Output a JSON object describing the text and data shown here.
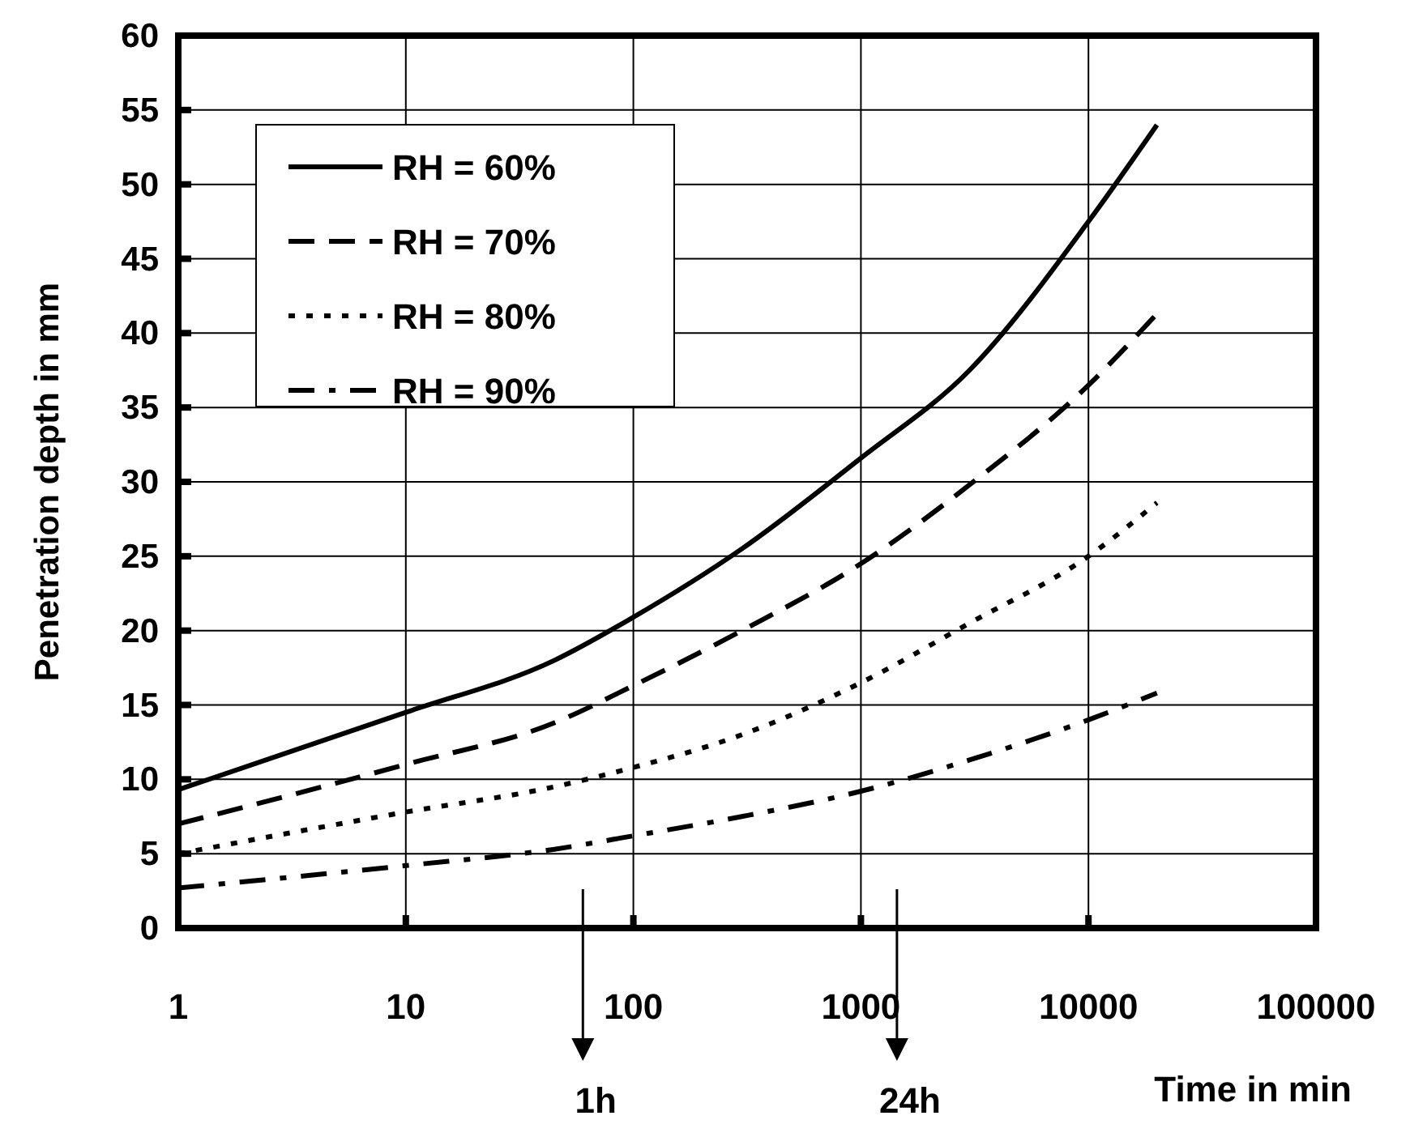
{
  "chart_data": {
    "type": "line",
    "xlabel": "Time in min",
    "ylabel": "Penetration depth in mm",
    "log": "x",
    "grid": true,
    "legend": "top left",
    "marker": "none",
    "xlim": [
      1,
      100000
    ],
    "xticks": [
      1,
      10,
      100,
      1000,
      10000,
      100000
    ],
    "ylim": [
      0,
      60
    ],
    "yticks": [
      0,
      5,
      10,
      15,
      20,
      25,
      30,
      35,
      40,
      45,
      50,
      55,
      60
    ],
    "series": [
      {
        "name": "RH = 60%",
        "color": "#000000",
        "line_style": "solid",
        "x": [
          1,
          10,
          45,
          100,
          300,
          1000,
          3000,
          10000,
          20000
        ],
        "values": [
          9.3,
          14.5,
          18,
          20.9,
          25.5,
          31.6,
          37.5,
          47.5,
          54
        ]
      },
      {
        "name": "RH = 70%",
        "color": "#000000",
        "line_style": "dashed",
        "x": [
          1,
          10,
          45,
          100,
          300,
          1000,
          3000,
          10000,
          20000
        ],
        "values": [
          7,
          11,
          13.8,
          16.3,
          20,
          24.5,
          29.8,
          36.5,
          41.3
        ]
      },
      {
        "name": "RH = 80%",
        "color": "#000000",
        "line_style": "dotted",
        "x": [
          1,
          10,
          45,
          100,
          300,
          1000,
          3000,
          10000,
          20000
        ],
        "values": [
          5,
          7.8,
          9.5,
          10.8,
          13,
          16.5,
          20.5,
          25,
          28.6
        ]
      },
      {
        "name": "RH = 90%",
        "color": "#000000",
        "line_style": "dashdot",
        "x": [
          1,
          10,
          45,
          100,
          300,
          1000,
          3000,
          10000,
          20000
        ],
        "values": [
          2.7,
          4.2,
          5.3,
          6.2,
          7.5,
          9.2,
          11.3,
          14,
          15.8
        ]
      }
    ],
    "ref_lines": [
      {
        "axis": "x",
        "value": 60,
        "label": "1h"
      },
      {
        "axis": "x",
        "value": 1440,
        "label": "24h"
      }
    ]
  }
}
